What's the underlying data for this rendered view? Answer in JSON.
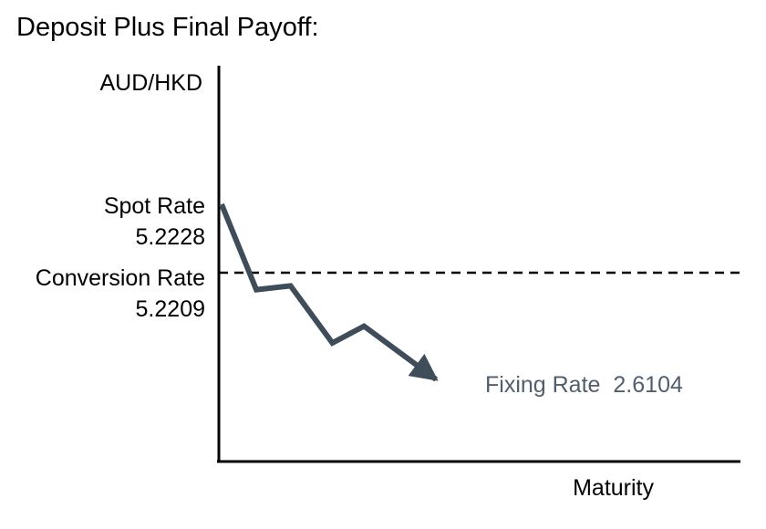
{
  "title": "Deposit Plus Final Payoff:",
  "chart_data": {
    "type": "line",
    "title": "Deposit Plus Final Payoff:",
    "ylabel": "AUD/HKD",
    "xlabel": "Maturity",
    "series": [
      {
        "values": [
          {
            "x": 0.0,
            "y": 5.2228
          },
          {
            "x": 0.068,
            "y": 4.1
          },
          {
            "x": 0.135,
            "y": 4.15
          },
          {
            "x": 0.217,
            "y": 3.4
          },
          {
            "x": 0.279,
            "y": 3.62
          },
          {
            "x": 0.42,
            "y": 2.92
          }
        ],
        "color": "#3f4c59"
      }
    ],
    "reference_lines": [
      {
        "label": "Conversion Rate",
        "value": "5.2209",
        "y": 5.2209,
        "style": "dashed",
        "color": "#000000"
      }
    ],
    "annotations": [
      {
        "label": "Spot Rate",
        "value": "5.2228",
        "y": 5.2228,
        "color": "#000000"
      },
      {
        "label": "Fixing Rate",
        "value": "2.6104",
        "y": 2.6104,
        "color": "#525e6b"
      }
    ],
    "grid": false,
    "legend": "none"
  }
}
